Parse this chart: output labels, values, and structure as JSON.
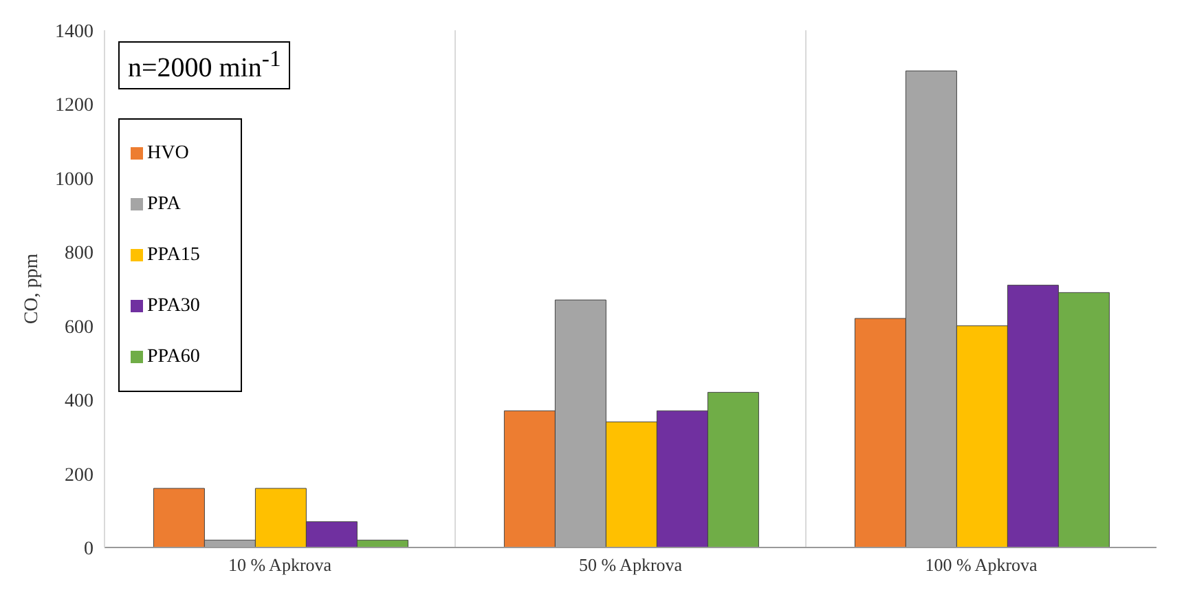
{
  "chart_data": {
    "type": "bar",
    "ylabel": "CO, ppm",
    "annotations": [
      "n=2000 min$^{-1}$"
    ],
    "categories": [
      "10 % Apkrova",
      "50 % Apkrova",
      "100 % Apkrova"
    ],
    "series": [
      {
        "name": "HVO",
        "color": "#ed7d31",
        "values": [
          160,
          370,
          620
        ]
      },
      {
        "name": "PPA",
        "color": "#a5a5a5",
        "values": [
          20,
          670,
          1290
        ]
      },
      {
        "name": "PPA15",
        "color": "#ffc000",
        "values": [
          160,
          340,
          600
        ]
      },
      {
        "name": "PPA30",
        "color": "#7030a0",
        "values": [
          70,
          370,
          710
        ]
      },
      {
        "name": "PPA60",
        "color": "#70ad47",
        "values": [
          20,
          420,
          690
        ]
      }
    ],
    "ylim": [
      0,
      1400
    ],
    "yticks": [
      0,
      200,
      400,
      600,
      800,
      1000,
      1200,
      1400
    ],
    "grid": "x",
    "legend": "top left"
  }
}
